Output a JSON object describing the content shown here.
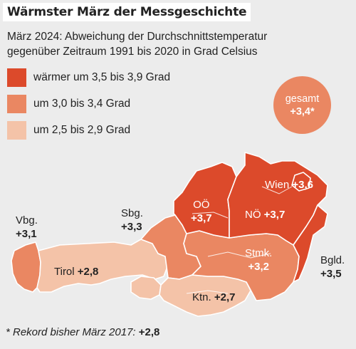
{
  "title": "Wärmster März der Messgeschichte",
  "subtitle_line1": "März 2024: Abweichung der  Durchschnittstemperatur",
  "subtitle_line2": "gegenüber Zeitraum 1991 bis 2020 in Grad Celsius",
  "legend": [
    {
      "label": "wärmer um 3,5 bis 3,9 Grad",
      "color": "#dc4a2b"
    },
    {
      "label": "um 3,0 bis 3,4 Grad",
      "color": "#ea8762"
    },
    {
      "label": "um 2,5 bis 2,9 Grad",
      "color": "#f4c3a8"
    }
  ],
  "total": {
    "label": "gesamt",
    "value": "+3,4*",
    "color": "#ea8762"
  },
  "regions": {
    "vbg": {
      "name": "Vbg.",
      "value": "+3,1",
      "color": "#ea8762"
    },
    "tirol": {
      "name": "Tirol",
      "value": "+2,8",
      "color": "#f4c3a8"
    },
    "sbg": {
      "name": "Sbg.",
      "value": "+3,3",
      "color": "#ea8762"
    },
    "ooe": {
      "name": "OÖ",
      "value": "+3,7",
      "color": "#dc4a2b"
    },
    "noe": {
      "name": "NÖ",
      "value": "+3,7",
      "color": "#dc4a2b"
    },
    "wien": {
      "name": "Wien",
      "value": "+3,6",
      "color": "#dc4a2b"
    },
    "stmk": {
      "name": "Stmk.",
      "value": "+3,2",
      "color": "#ea8762"
    },
    "ktn": {
      "name": "Ktn.",
      "value": "+2,7",
      "color": "#f4c3a8"
    },
    "bgld": {
      "name": "Bgld.",
      "value": "+3,5",
      "color": "#dc4a2b"
    }
  },
  "footnote_text": "* Rekord bisher März 2017:",
  "footnote_value": "+2,8"
}
